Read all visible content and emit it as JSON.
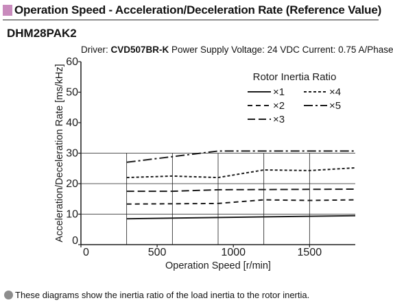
{
  "header": {
    "title": "Operation Speed - Acceleration/Deceleration Rate (Reference Value)",
    "model": "DHM28PAK2"
  },
  "subtitle": {
    "driver_label": "Driver: ",
    "driver_model": "CVD507BR-K",
    "conditions": " Power Supply Voltage: 24 VDC Current: 0.75 A/Phase"
  },
  "footnote": "These diagrams show the inertia ratio of the load inertia to the rotor inertia.",
  "colors": {
    "title_marker": "#c98bbd",
    "note_bullet": "#8d8d8d",
    "lines": "#1a1a1a",
    "grid": "#1a1a1a"
  },
  "chart_data": {
    "type": "line",
    "xlabel": "Operation Speed [r/min]",
    "ylabel": "Acceleration/Deceleration Rate [ms/kHz]",
    "xlim": [
      0,
      1800
    ],
    "ylim": [
      0,
      60
    ],
    "x_ticks": [
      0,
      500,
      1000,
      1500
    ],
    "y_ticks": [
      0,
      10,
      20,
      30,
      40,
      50,
      60
    ],
    "y_grid": [
      10,
      20,
      30
    ],
    "x_grid": [
      300,
      600,
      900,
      1200,
      1500
    ],
    "legend": {
      "title": "Rotor Inertia Ratio",
      "position": "top-right"
    },
    "series": [
      {
        "name": "×1",
        "style": "solid",
        "x": [
          300,
          1800
        ],
        "y": [
          8.5,
          9.5
        ]
      },
      {
        "name": "×2",
        "style": "dashed",
        "x": [
          300,
          900,
          1200,
          1500,
          1800
        ],
        "y": [
          13.3,
          13.5,
          14.7,
          14.5,
          14.7
        ]
      },
      {
        "name": "×3",
        "style": "longdash",
        "x": [
          300,
          600,
          900,
          1800
        ],
        "y": [
          17.5,
          17.5,
          18,
          18.2
        ]
      },
      {
        "name": "×4",
        "style": "dotdot",
        "x": [
          300,
          600,
          900,
          1200,
          1500,
          1800
        ],
        "y": [
          22,
          22.5,
          22,
          24.5,
          24.3,
          25.2
        ]
      },
      {
        "name": "×5",
        "style": "dashdot",
        "x": [
          300,
          900,
          1800
        ],
        "y": [
          27,
          30.7,
          30.7
        ]
      }
    ]
  }
}
